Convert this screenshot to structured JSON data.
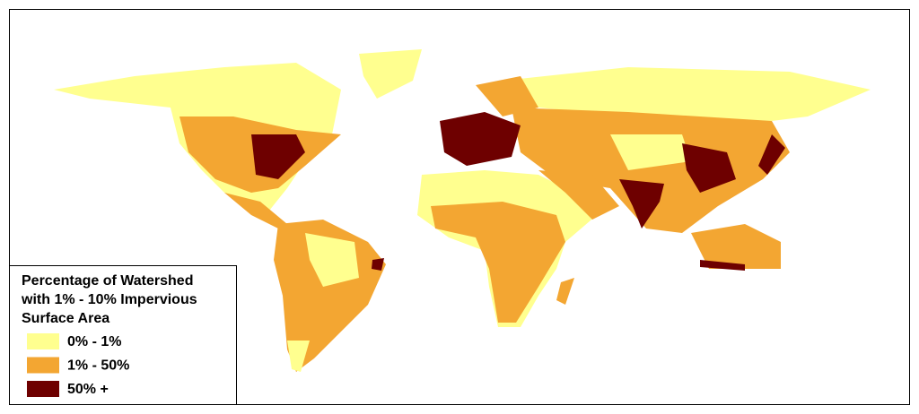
{
  "legend": {
    "title": [
      "Percentage of Watershed",
      "with 1% - 10% Impervious",
      "Surface Area"
    ],
    "items": [
      {
        "label": "0% - 1%",
        "color": "#ffff8f"
      },
      {
        "label": "1% - 50%",
        "color": "#f3a632"
      },
      {
        "label": "50% +",
        "color": "#6e0000"
      }
    ]
  }
}
